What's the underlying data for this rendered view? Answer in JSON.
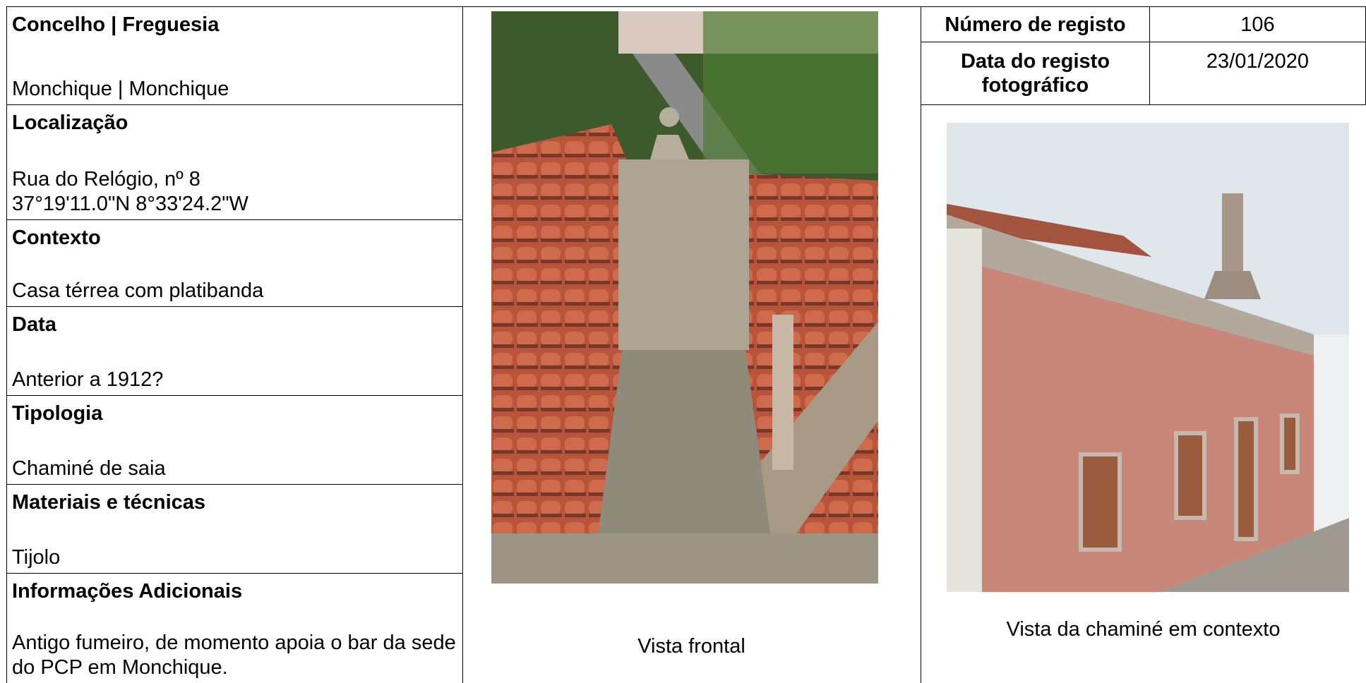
{
  "sections": [
    {
      "label": "Concelho | Freguesia",
      "lines": [
        "Monchique | Monchique"
      ]
    },
    {
      "label": "Localização",
      "lines": [
        "Rua do Relógio, nº 8",
        "37°19'11.0\"N 8°33'24.2\"W"
      ]
    },
    {
      "label": "Contexto",
      "lines": [
        "Casa térrea com platibanda"
      ]
    },
    {
      "label": "Data",
      "lines": [
        "Anterior a 1912?"
      ]
    },
    {
      "label": "Tipologia",
      "lines": [
        "Chaminé de saia"
      ]
    },
    {
      "label": "Materiais e técnicas",
      "lines": [
        "Tijolo"
      ]
    },
    {
      "label": "Informações Adicionais",
      "lines": [
        "Antigo fumeiro, de momento apoia o bar da sede do PCP em Monchique."
      ]
    }
  ],
  "registo": {
    "label": "Número de registo",
    "value": "106"
  },
  "data_registo": {
    "label": "Data do registo fotográfico",
    "value": "23/01/2020"
  },
  "photos": [
    {
      "caption": "Vista frontal"
    },
    {
      "caption": "Vista da chaminé em contexto"
    }
  ]
}
